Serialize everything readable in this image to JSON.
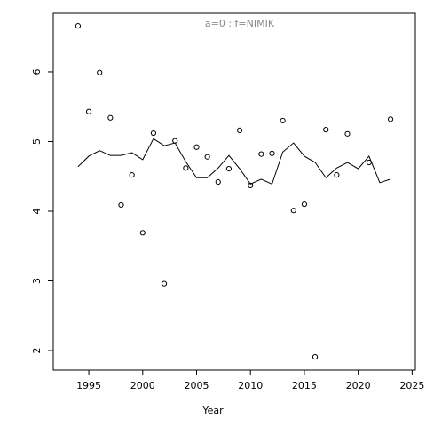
{
  "chart_data": {
    "type": "scatter",
    "title": "a=0  :  f=NIMIK",
    "x_label": "Year",
    "xlim": [
      1991.7,
      2025.3
    ],
    "xticks": [
      1995,
      2000,
      2005,
      2010,
      2015,
      2020,
      2025
    ],
    "ylim": [
      1.72,
      6.84
    ],
    "yticks": [
      2,
      3,
      4,
      5,
      6
    ],
    "series": [
      {
        "type": "scatter",
        "color": "#000000",
        "x": [
          1994,
          1995,
          1996,
          1997,
          1998,
          1999,
          2000,
          2001,
          2002,
          2003,
          2004,
          2005,
          2006,
          2007,
          2008,
          2009,
          2010,
          2011,
          2012,
          2013,
          2014,
          2015,
          2016,
          2017,
          2018,
          2019,
          2021,
          2023
        ],
        "values": [
          6.66,
          5.43,
          5.99,
          5.34,
          4.09,
          4.52,
          3.69,
          5.12,
          2.96,
          5.01,
          4.62,
          4.92,
          4.78,
          4.42,
          4.61,
          5.16,
          4.37,
          4.82,
          4.83,
          5.3,
          4.01,
          4.1,
          1.91,
          5.17,
          4.52,
          5.11,
          4.7,
          5.32
        ]
      },
      {
        "type": "line",
        "color": "#000000",
        "x": [
          1994,
          1995,
          1996,
          1997,
          1998,
          1999,
          2000,
          2001,
          2002,
          2003,
          2004,
          2005,
          2006,
          2007,
          2008,
          2009,
          2010,
          2011,
          2012,
          2013,
          2014,
          2015,
          2016,
          2017,
          2018,
          2019,
          2020,
          2021,
          2022,
          2023
        ],
        "values": [
          4.64,
          4.79,
          4.87,
          4.8,
          4.8,
          4.84,
          4.74,
          5.04,
          4.94,
          4.98,
          4.71,
          4.48,
          4.48,
          4.62,
          4.8,
          4.61,
          4.39,
          4.46,
          4.39,
          4.85,
          4.98,
          4.79,
          4.7,
          4.48,
          4.62,
          4.7,
          4.61,
          4.79,
          4.41,
          4.46
        ]
      }
    ]
  }
}
